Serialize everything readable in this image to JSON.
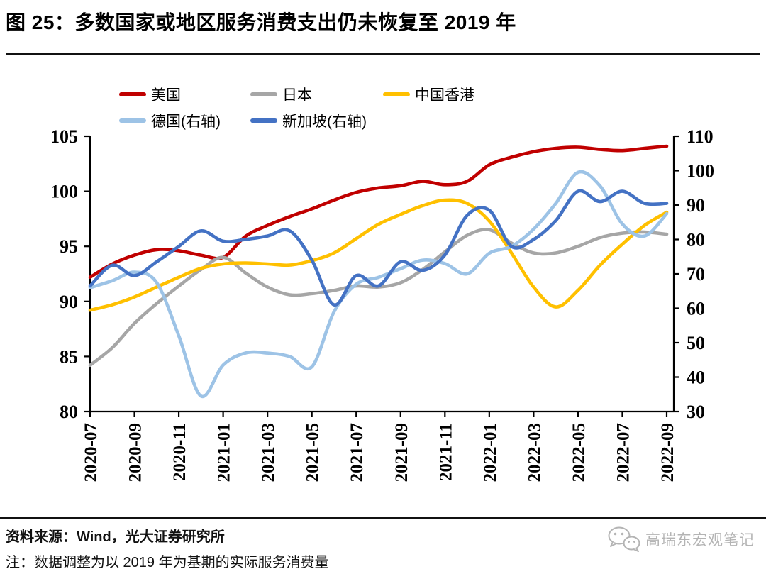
{
  "title": "图 25：多数国家或地区服务消费支出仍未恢复至 2019 年",
  "footer": {
    "source": "资料来源：Wind，光大证券研究所",
    "note": "注：数据调整为以 2019 年为基期的实际服务消费量",
    "brand": "高瑞东宏观笔记"
  },
  "colors": {
    "us": "#C00000",
    "japan": "#A6A6A6",
    "hongkong": "#FFC000",
    "germany": "#9DC3E6",
    "singapore": "#4472C4",
    "axis": "#000000"
  },
  "chart_data": {
    "type": "line",
    "title": "图 25：多数国家或地区服务消费支出仍未恢复至 2019 年",
    "x": [
      "2020-07",
      "2020-08",
      "2020-09",
      "2020-10",
      "2020-11",
      "2020-12",
      "2021-01",
      "2021-02",
      "2021-03",
      "2021-04",
      "2021-05",
      "2021-06",
      "2021-07",
      "2021-08",
      "2021-09",
      "2021-10",
      "2021-11",
      "2021-12",
      "2022-01",
      "2022-02",
      "2022-03",
      "2022-04",
      "2022-05",
      "2022-06",
      "2022-07",
      "2022-08",
      "2022-09"
    ],
    "x_tick_step": 2,
    "x_tick_labels": [
      "2020-07",
      "2020-09",
      "2020-11",
      "2021-01",
      "2021-03",
      "2021-05",
      "2021-07",
      "2021-09",
      "2021-11",
      "2022-01",
      "2022-03",
      "2022-05",
      "2022-07",
      "2022-09"
    ],
    "left_axis": {
      "min": 80,
      "max": 105,
      "ticks": [
        105,
        100,
        95,
        90,
        85,
        80
      ]
    },
    "right_axis": {
      "min": 30,
      "max": 110,
      "ticks": [
        110,
        100,
        90,
        80,
        70,
        60,
        50,
        40,
        30
      ]
    },
    "grid": false,
    "legend_position": "top",
    "series": [
      {
        "name": "美国",
        "axis": "left",
        "color": "#C00000",
        "values": [
          92.2,
          93.4,
          94.2,
          94.7,
          94.6,
          94.2,
          94.0,
          95.9,
          96.9,
          97.7,
          98.4,
          99.2,
          99.9,
          100.3,
          100.5,
          100.9,
          100.6,
          100.9,
          102.4,
          103.1,
          103.6,
          103.9,
          104.0,
          103.8,
          103.7,
          103.9,
          104.1
        ]
      },
      {
        "name": "日本",
        "axis": "left",
        "color": "#A6A6A6",
        "values": [
          84.2,
          85.8,
          88.0,
          89.8,
          91.4,
          92.9,
          94.0,
          92.6,
          91.3,
          90.6,
          90.7,
          91.0,
          91.4,
          91.3,
          91.7,
          92.9,
          94.5,
          96.0,
          96.5,
          95.3,
          94.4,
          94.4,
          95.0,
          95.8,
          96.2,
          96.3,
          96.1
        ]
      },
      {
        "name": "中国香港",
        "axis": "left",
        "color": "#FFC000",
        "values": [
          89.2,
          89.7,
          90.4,
          91.3,
          92.2,
          93.0,
          93.4,
          93.5,
          93.4,
          93.3,
          93.7,
          94.4,
          95.7,
          97.0,
          97.9,
          98.7,
          99.2,
          98.9,
          97.3,
          94.4,
          91.3,
          89.5,
          91.0,
          93.3,
          95.2,
          96.9,
          98.1
        ]
      },
      {
        "name": "德国(右轴)",
        "axis": "right",
        "color": "#9DC3E6",
        "values": [
          66,
          68,
          70.5,
          67.5,
          52,
          34.5,
          43.5,
          47,
          47,
          46,
          43,
          59,
          67,
          69,
          71.5,
          74,
          73,
          70,
          76,
          78,
          83,
          90.5,
          99.5,
          95.5,
          84.5,
          81,
          87.5
        ]
      },
      {
        "name": "新加坡(右轴)",
        "axis": "right",
        "color": "#4472C4",
        "values": [
          66.5,
          72.5,
          69.5,
          73.5,
          78,
          82.5,
          79.5,
          80,
          81,
          82.5,
          74,
          61,
          69.5,
          66.5,
          73.5,
          71,
          75.5,
          87,
          88.5,
          78,
          80,
          85.5,
          94,
          91,
          94,
          90.5,
          90.5
        ]
      }
    ],
    "legend_rows": [
      [
        0,
        1,
        2
      ],
      [
        3,
        4
      ]
    ]
  }
}
